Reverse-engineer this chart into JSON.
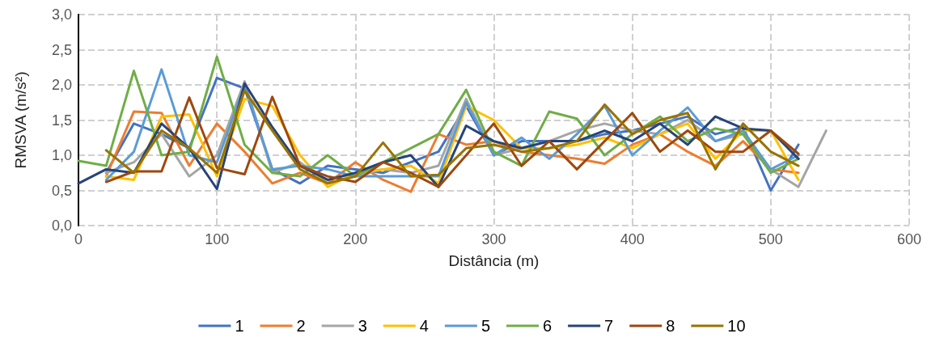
{
  "chart_data": {
    "type": "line",
    "xlabel": "Distância (m)",
    "ylabel": "RMSVA (m/s²)",
    "xlim": [
      0,
      600
    ],
    "xticks": [
      0,
      100,
      200,
      300,
      400,
      500,
      600
    ],
    "ylim": [
      0,
      3
    ],
    "yticks": [
      {
        "value": 0,
        "label": "0,0"
      },
      {
        "value": 0.5,
        "label": "0,5"
      },
      {
        "value": 1,
        "label": "1,0"
      },
      {
        "value": 1.5,
        "label": "1,5"
      },
      {
        "value": 2,
        "label": "2,0"
      },
      {
        "value": 2.5,
        "label": "2,5"
      },
      {
        "value": 3,
        "label": "3,0"
      }
    ],
    "grid": true,
    "legend": "bottom",
    "marker": "none",
    "line_style": "solid",
    "series": [
      {
        "name": "1",
        "color": "#4472c4",
        "x": [
          20,
          40,
          60,
          80,
          100,
          120,
          140,
          160,
          180,
          200,
          220,
          240,
          260,
          280,
          300,
          320,
          340,
          360,
          380,
          400,
          420,
          440,
          460,
          480,
          500,
          520
        ],
        "values": [
          0.75,
          1.45,
          1.3,
          1.1,
          2.1,
          1.95,
          0.8,
          0.6,
          0.85,
          0.8,
          0.75,
          0.9,
          1.05,
          1.7,
          1.0,
          1.2,
          1.2,
          1.2,
          1.3,
          1.35,
          1.45,
          1.55,
          1.3,
          1.4,
          0.5,
          1.15
        ]
      },
      {
        "name": "2",
        "color": "#ed7d31",
        "x": [
          20,
          40,
          60,
          80,
          100,
          120,
          140,
          160,
          180,
          200,
          220,
          240,
          260,
          280,
          300,
          320,
          340,
          360,
          380,
          400,
          420,
          440,
          460,
          480,
          500,
          520
        ],
        "values": [
          0.7,
          1.62,
          1.6,
          0.85,
          1.45,
          1.05,
          0.6,
          0.75,
          0.6,
          0.9,
          0.65,
          0.48,
          1.3,
          1.15,
          1.2,
          1.05,
          1.0,
          0.95,
          0.88,
          1.15,
          1.3,
          1.05,
          0.85,
          1.2,
          0.8,
          0.75
        ]
      },
      {
        "name": "3",
        "color": "#a5a5a5",
        "x": [
          20,
          40,
          60,
          80,
          100,
          120,
          140,
          160,
          180,
          200,
          220,
          240,
          260,
          280,
          300,
          320,
          340,
          360,
          380,
          400,
          420,
          440,
          460,
          480,
          500,
          520,
          540
        ],
        "values": [
          0.75,
          0.9,
          1.3,
          0.7,
          1.0,
          2.05,
          0.75,
          0.9,
          0.6,
          0.7,
          0.8,
          0.75,
          0.85,
          1.8,
          1.0,
          1.1,
          1.2,
          1.35,
          1.45,
          1.35,
          1.3,
          1.5,
          1.2,
          1.3,
          0.8,
          0.55,
          1.35
        ]
      },
      {
        "name": "4",
        "color": "#ffc000",
        "x": [
          20,
          40,
          60,
          80,
          100,
          120,
          140,
          160,
          180,
          200,
          220,
          240,
          260,
          280,
          300,
          320,
          340,
          360,
          380,
          400,
          420,
          440,
          460,
          480,
          500,
          520
        ],
        "values": [
          0.7,
          0.65,
          1.55,
          1.58,
          0.7,
          1.8,
          1.7,
          1.0,
          0.55,
          0.75,
          0.8,
          0.85,
          0.6,
          1.7,
          1.5,
          1.1,
          1.1,
          1.15,
          1.25,
          1.1,
          1.3,
          1.45,
          0.95,
          1.35,
          1.35,
          0.65
        ]
      },
      {
        "name": "5",
        "color": "#5b9bd5",
        "x": [
          20,
          40,
          60,
          80,
          100,
          120,
          140,
          160,
          180,
          200,
          220,
          240,
          260,
          280,
          300,
          320,
          340,
          360,
          380,
          400,
          420,
          440,
          460,
          480,
          500,
          520
        ],
        "values": [
          0.65,
          1.05,
          2.22,
          1.0,
          0.9,
          2.0,
          0.8,
          0.85,
          0.8,
          0.7,
          0.7,
          0.7,
          0.7,
          1.75,
          1.0,
          1.25,
          0.95,
          1.3,
          1.7,
          1.0,
          1.35,
          1.68,
          1.2,
          1.35,
          0.8,
          1.0
        ]
      },
      {
        "name": "6",
        "color": "#70ad47",
        "x": [
          0,
          20,
          40,
          60,
          80,
          100,
          120,
          140,
          160,
          180,
          200,
          220,
          240,
          260,
          280,
          300,
          320,
          340,
          360,
          380,
          400,
          420,
          440,
          460,
          480,
          500,
          520
        ],
        "values": [
          0.92,
          0.85,
          2.2,
          1.0,
          1.05,
          2.4,
          1.15,
          0.75,
          0.7,
          1.0,
          0.7,
          0.9,
          1.1,
          1.3,
          1.93,
          1.05,
          0.85,
          1.62,
          1.52,
          1.0,
          1.3,
          1.55,
          1.2,
          1.38,
          1.3,
          0.75,
          0.95
        ]
      },
      {
        "name": "7",
        "color": "#264478",
        "x": [
          0,
          20,
          40,
          60,
          80,
          100,
          120,
          140,
          160,
          180,
          200,
          220,
          240,
          260,
          280,
          300,
          320,
          340,
          360,
          380,
          400,
          420,
          440,
          460,
          480,
          500,
          520
        ],
        "values": [
          0.6,
          0.8,
          0.75,
          1.45,
          1.1,
          0.52,
          2.02,
          1.4,
          0.85,
          0.65,
          0.75,
          0.9,
          1.0,
          0.55,
          1.42,
          1.2,
          1.1,
          1.2,
          1.2,
          1.35,
          1.2,
          1.45,
          1.15,
          1.55,
          1.38,
          1.35,
          0.95
        ]
      },
      {
        "name": "8",
        "color": "#9e480e",
        "x": [
          20,
          40,
          60,
          80,
          100,
          120,
          140,
          160,
          180,
          200,
          220,
          240,
          260,
          280,
          300,
          320,
          340,
          360,
          380,
          400,
          420,
          440,
          460,
          480,
          500,
          520
        ],
        "values": [
          0.62,
          0.77,
          0.77,
          1.82,
          0.82,
          0.73,
          1.83,
          0.85,
          0.7,
          0.62,
          0.9,
          0.75,
          0.55,
          1.0,
          1.45,
          0.85,
          1.2,
          0.8,
          1.2,
          1.6,
          1.05,
          1.35,
          1.05,
          1.05,
          1.35,
          1.02
        ]
      },
      {
        "name": "10",
        "color": "#997300",
        "x": [
          20,
          40,
          60,
          80,
          100,
          120,
          140,
          160,
          180,
          200,
          220,
          240,
          260,
          280,
          300,
          320,
          340,
          360,
          380,
          400,
          420,
          440,
          460,
          480,
          500,
          520
        ],
        "values": [
          1.07,
          0.75,
          1.35,
          1.1,
          0.75,
          1.92,
          1.35,
          0.8,
          0.6,
          0.7,
          1.18,
          0.7,
          0.72,
          1.1,
          1.15,
          1.05,
          1.1,
          1.2,
          1.72,
          1.3,
          1.5,
          1.6,
          0.8,
          1.45,
          1.05,
          0.85
        ]
      }
    ]
  }
}
